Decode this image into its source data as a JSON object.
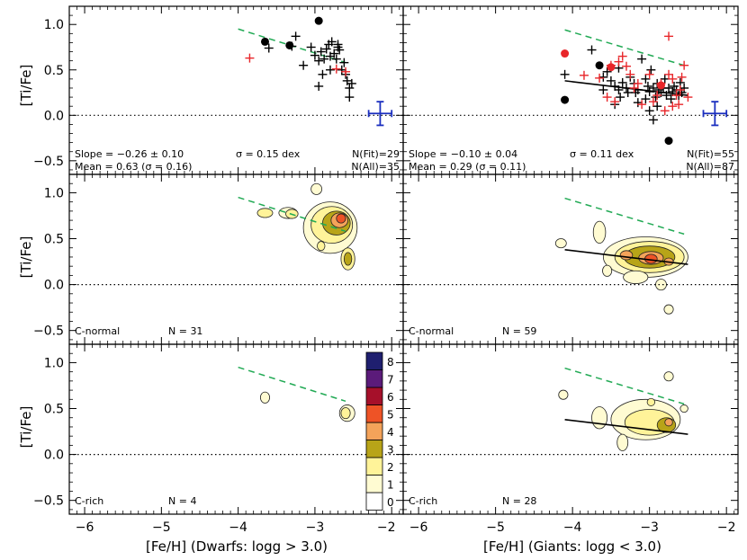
{
  "figure": {
    "ylabel": "[Ti/Fe]",
    "xlabel_left": "[Fe/H] (Dwarfs: logg > 3.0)",
    "xlabel_right": "[Fe/H] (Giants: logg < 3.0)"
  },
  "chart_data": {
    "type": "scatter",
    "xlim": [
      -6.2,
      -1.85
    ],
    "ylim": [
      -0.65,
      1.2
    ],
    "xticks": [
      -6,
      -5,
      -4,
      -3,
      -2
    ],
    "yticks": [
      -0.5,
      0.0,
      0.5,
      1.0
    ],
    "xtick_labels": [
      "−6",
      "−5",
      "−4",
      "−3",
      "−2"
    ],
    "ytick_labels": [
      "−0.5",
      "0.0",
      "0.5",
      "1.0"
    ],
    "colors": {
      "black_points": "#000000",
      "red_points": "#e8262a",
      "dashed_line": "#22aa55",
      "error_bar": "#1b2fbf"
    },
    "colorbar": {
      "labels": [
        "0",
        "1",
        "2",
        "3",
        "4",
        "5",
        "6",
        "7",
        "8"
      ],
      "colors": [
        "#ffffff",
        "#fffbd2",
        "#fff399",
        "#b8a418",
        "#f4a35a",
        "#ee5326",
        "#a6102a",
        "#5b1b7a",
        "#1f1f6f"
      ]
    },
    "panels": [
      {
        "id": "dwarfs-all",
        "slope_text": "Slope = −0.26 ± 0.10",
        "sigma_text": "σ = 0.15 dex",
        "nfit_text": "N(Fit)=29",
        "mean_text": "Mean = 0.63 (σ = 0.16)",
        "nall_text": "N(All)=35",
        "dashed": [
          [
            -4.0,
            0.95
          ],
          [
            -2.6,
            0.58
          ]
        ],
        "fit": null,
        "errorbar": {
          "x": -2.15,
          "y": 0.02,
          "dx": 0.15,
          "dy": 0.13
        },
        "plus_black": [
          [
            -3.6,
            0.74
          ],
          [
            -3.25,
            0.87
          ],
          [
            -3.15,
            0.55
          ],
          [
            -3.05,
            0.75
          ],
          [
            -3.0,
            0.66
          ],
          [
            -2.95,
            0.6
          ],
          [
            -2.92,
            0.7
          ],
          [
            -2.88,
            0.62
          ],
          [
            -2.85,
            0.73
          ],
          [
            -2.82,
            0.78
          ],
          [
            -2.8,
            0.65
          ],
          [
            -2.78,
            0.81
          ],
          [
            -2.75,
            0.68
          ],
          [
            -2.72,
            0.62
          ],
          [
            -2.7,
            0.78
          ],
          [
            -2.68,
            0.72
          ],
          [
            -2.65,
            0.5
          ],
          [
            -2.62,
            0.58
          ],
          [
            -2.6,
            0.45
          ],
          [
            -2.58,
            0.38
          ],
          [
            -2.55,
            0.3
          ],
          [
            -2.55,
            0.2
          ],
          [
            -2.52,
            0.35
          ],
          [
            -2.9,
            0.45
          ],
          [
            -3.3,
            0.76
          ],
          [
            -2.7,
            0.75
          ],
          [
            -2.95,
            0.32
          ],
          [
            -2.8,
            0.5
          ]
        ],
        "plus_red": [
          [
            -3.85,
            0.63
          ],
          [
            -2.72,
            0.51
          ],
          [
            -2.6,
            0.48
          ]
        ],
        "dot_black": [
          [
            -2.95,
            1.04
          ],
          [
            -3.65,
            0.81
          ],
          [
            -3.33,
            0.77
          ]
        ],
        "dot_red": []
      },
      {
        "id": "giants-all",
        "slope_text": "Slope = −0.10 ± 0.04",
        "sigma_text": "σ = 0.11 dex",
        "nfit_text": "N(Fit)=55",
        "mean_text": "Mean = 0.29 (σ = 0.11)",
        "nall_text": "N(All)=87",
        "dashed": [
          [
            -4.1,
            0.94
          ],
          [
            -2.55,
            0.55
          ]
        ],
        "fit": [
          [
            -4.1,
            0.38
          ],
          [
            -2.5,
            0.22
          ]
        ],
        "errorbar": {
          "x": -2.15,
          "y": 0.02,
          "dx": 0.15,
          "dy": 0.13
        },
        "plus_black": [
          [
            -4.1,
            0.45
          ],
          [
            -3.75,
            0.72
          ],
          [
            -3.6,
            0.42
          ],
          [
            -3.5,
            0.38
          ],
          [
            -3.45,
            0.32
          ],
          [
            -3.4,
            0.28
          ],
          [
            -3.38,
            0.2
          ],
          [
            -3.35,
            0.36
          ],
          [
            -3.3,
            0.3
          ],
          [
            -3.25,
            0.42
          ],
          [
            -3.2,
            0.35
          ],
          [
            -3.18,
            0.25
          ],
          [
            -3.15,
            0.28
          ],
          [
            -3.1,
            0.62
          ],
          [
            -3.05,
            0.4
          ],
          [
            -3.02,
            0.32
          ],
          [
            -3.0,
            0.26
          ],
          [
            -2.98,
            0.5
          ],
          [
            -2.95,
            0.3
          ],
          [
            -2.92,
            0.2
          ],
          [
            -2.9,
            0.35
          ],
          [
            -2.88,
            0.28
          ],
          [
            -2.85,
            0.25
          ],
          [
            -2.82,
            0.3
          ],
          [
            -2.8,
            0.4
          ],
          [
            -2.78,
            0.22
          ],
          [
            -2.75,
            0.3
          ],
          [
            -2.72,
            0.18
          ],
          [
            -2.7,
            0.26
          ],
          [
            -2.68,
            0.32
          ],
          [
            -2.65,
            0.28
          ],
          [
            -2.62,
            0.22
          ],
          [
            -2.6,
            0.36
          ],
          [
            -2.58,
            0.25
          ],
          [
            -2.55,
            0.3
          ],
          [
            -3.55,
            0.48
          ],
          [
            -3.45,
            0.12
          ],
          [
            -3.0,
            0.05
          ],
          [
            -2.95,
            -0.05
          ],
          [
            -3.15,
            0.14
          ],
          [
            -3.28,
            0.25
          ],
          [
            -3.6,
            0.28
          ],
          [
            -2.9,
            0.1
          ],
          [
            -3.4,
            0.52
          ],
          [
            -3.05,
            0.18
          ]
        ],
        "plus_red": [
          [
            -3.85,
            0.44
          ],
          [
            -3.65,
            0.41
          ],
          [
            -3.5,
            0.55
          ],
          [
            -3.4,
            0.59
          ],
          [
            -3.3,
            0.54
          ],
          [
            -3.2,
            0.3
          ],
          [
            -3.1,
            0.12
          ],
          [
            -2.95,
            0.15
          ],
          [
            -2.85,
            0.35
          ],
          [
            -2.8,
            0.05
          ],
          [
            -2.75,
            0.87
          ],
          [
            -2.7,
            0.4
          ],
          [
            -2.65,
            0.22
          ],
          [
            -2.6,
            0.28
          ],
          [
            -2.55,
            0.55
          ],
          [
            -2.5,
            0.2
          ],
          [
            -3.55,
            0.2
          ],
          [
            -3.45,
            0.15
          ],
          [
            -3.35,
            0.65
          ],
          [
            -3.0,
            0.45
          ],
          [
            -2.9,
            0.22
          ],
          [
            -2.7,
            0.1
          ],
          [
            -3.25,
            0.45
          ],
          [
            -2.58,
            0.42
          ],
          [
            -2.62,
            0.12
          ],
          [
            -3.15,
            0.35
          ],
          [
            -2.75,
            0.45
          ]
        ],
        "dot_black": [
          [
            -4.1,
            0.17
          ],
          [
            -3.65,
            0.55
          ],
          [
            -2.75,
            -0.28
          ]
        ],
        "dot_red": [
          [
            -4.1,
            0.68
          ],
          [
            -3.5,
            0.53
          ],
          [
            -2.85,
            0.33
          ]
        ]
      },
      {
        "id": "dwarfs-cnormal",
        "label_text": "C-normal",
        "n_text": "N = 31",
        "dashed": [
          [
            -4.0,
            0.95
          ],
          [
            -2.6,
            0.58
          ]
        ],
        "fit": null,
        "contours": [
          {
            "x": -3.35,
            "y": 0.78,
            "rx": 0.12,
            "ry": 0.06,
            "level": 1
          },
          {
            "x": -2.98,
            "y": 1.04,
            "rx": 0.07,
            "ry": 0.06,
            "level": 1
          },
          {
            "x": -3.65,
            "y": 0.78,
            "rx": 0.1,
            "ry": 0.05,
            "level": 2
          },
          {
            "x": -3.3,
            "y": 0.77,
            "rx": 0.08,
            "ry": 0.05,
            "level": 2
          },
          {
            "x": -2.8,
            "y": 0.62,
            "rx": 0.35,
            "ry": 0.28,
            "level": 1
          },
          {
            "x": -2.78,
            "y": 0.65,
            "rx": 0.27,
            "ry": 0.2,
            "level": 2
          },
          {
            "x": -2.72,
            "y": 0.67,
            "rx": 0.18,
            "ry": 0.13,
            "level": 3
          },
          {
            "x": -2.68,
            "y": 0.7,
            "rx": 0.11,
            "ry": 0.08,
            "level": 4
          },
          {
            "x": -2.66,
            "y": 0.72,
            "rx": 0.06,
            "ry": 0.05,
            "level": 5
          },
          {
            "x": -2.57,
            "y": 0.28,
            "rx": 0.09,
            "ry": 0.12,
            "level": 2
          },
          {
            "x": -2.57,
            "y": 0.28,
            "rx": 0.05,
            "ry": 0.07,
            "level": 3
          },
          {
            "x": -2.92,
            "y": 0.42,
            "rx": 0.05,
            "ry": 0.05,
            "level": 2
          }
        ]
      },
      {
        "id": "giants-cnormal",
        "label_text": "C-normal",
        "n_text": "N = 59",
        "dashed": [
          [
            -4.1,
            0.94
          ],
          [
            -2.55,
            0.55
          ]
        ],
        "fit": [
          [
            -4.1,
            0.38
          ],
          [
            -2.5,
            0.22
          ]
        ],
        "contours": [
          {
            "x": -4.15,
            "y": 0.45,
            "rx": 0.07,
            "ry": 0.05,
            "level": 1
          },
          {
            "x": -3.65,
            "y": 0.57,
            "rx": 0.08,
            "ry": 0.12,
            "level": 1
          },
          {
            "x": -3.05,
            "y": 0.3,
            "rx": 0.55,
            "ry": 0.22,
            "level": 1
          },
          {
            "x": -3.0,
            "y": 0.3,
            "rx": 0.45,
            "ry": 0.17,
            "level": 2
          },
          {
            "x": -3.0,
            "y": 0.3,
            "rx": 0.33,
            "ry": 0.12,
            "level": 3
          },
          {
            "x": -2.98,
            "y": 0.29,
            "rx": 0.16,
            "ry": 0.07,
            "level": 4
          },
          {
            "x": -2.98,
            "y": 0.28,
            "rx": 0.08,
            "ry": 0.05,
            "level": 5
          },
          {
            "x": -3.3,
            "y": 0.32,
            "rx": 0.08,
            "ry": 0.05,
            "level": 4
          },
          {
            "x": -2.75,
            "y": 0.25,
            "rx": 0.06,
            "ry": 0.04,
            "level": 4
          },
          {
            "x": -3.18,
            "y": 0.08,
            "rx": 0.16,
            "ry": 0.07,
            "level": 1
          },
          {
            "x": -2.85,
            "y": 0.0,
            "rx": 0.07,
            "ry": 0.06,
            "level": 1
          },
          {
            "x": -2.75,
            "y": -0.27,
            "rx": 0.06,
            "ry": 0.05,
            "level": 1
          },
          {
            "x": -3.55,
            "y": 0.15,
            "rx": 0.06,
            "ry": 0.06,
            "level": 1
          }
        ]
      },
      {
        "id": "dwarfs-crich",
        "label_text": "C-rich",
        "n_text": "N = 4",
        "dashed": [
          [
            -4.0,
            0.95
          ],
          [
            -2.6,
            0.58
          ]
        ],
        "fit": null,
        "contours": [
          {
            "x": -3.65,
            "y": 0.62,
            "rx": 0.06,
            "ry": 0.06,
            "level": 1
          },
          {
            "x": -2.58,
            "y": 0.45,
            "rx": 0.1,
            "ry": 0.09,
            "level": 1
          },
          {
            "x": -2.6,
            "y": 0.45,
            "rx": 0.06,
            "ry": 0.06,
            "level": 2
          }
        ]
      },
      {
        "id": "giants-crich",
        "label_text": "C-rich",
        "n_text": "N = 28",
        "dashed": [
          [
            -4.1,
            0.94
          ],
          [
            -2.55,
            0.55
          ]
        ],
        "fit": [
          [
            -4.1,
            0.38
          ],
          [
            -2.5,
            0.22
          ]
        ],
        "contours": [
          {
            "x": -4.12,
            "y": 0.65,
            "rx": 0.06,
            "ry": 0.05,
            "level": 1
          },
          {
            "x": -3.65,
            "y": 0.4,
            "rx": 0.1,
            "ry": 0.12,
            "level": 1
          },
          {
            "x": -2.75,
            "y": 0.85,
            "rx": 0.06,
            "ry": 0.05,
            "level": 1
          },
          {
            "x": -3.05,
            "y": 0.38,
            "rx": 0.45,
            "ry": 0.22,
            "level": 1
          },
          {
            "x": -3.0,
            "y": 0.35,
            "rx": 0.32,
            "ry": 0.14,
            "level": 2
          },
          {
            "x": -2.78,
            "y": 0.32,
            "rx": 0.12,
            "ry": 0.08,
            "level": 3
          },
          {
            "x": -2.75,
            "y": 0.35,
            "rx": 0.05,
            "ry": 0.04,
            "level": 4
          },
          {
            "x": -3.35,
            "y": 0.13,
            "rx": 0.07,
            "ry": 0.09,
            "level": 1
          },
          {
            "x": -2.98,
            "y": 0.57,
            "rx": 0.05,
            "ry": 0.04,
            "level": 2
          },
          {
            "x": -2.55,
            "y": 0.5,
            "rx": 0.05,
            "ry": 0.04,
            "level": 1
          }
        ]
      }
    ]
  }
}
